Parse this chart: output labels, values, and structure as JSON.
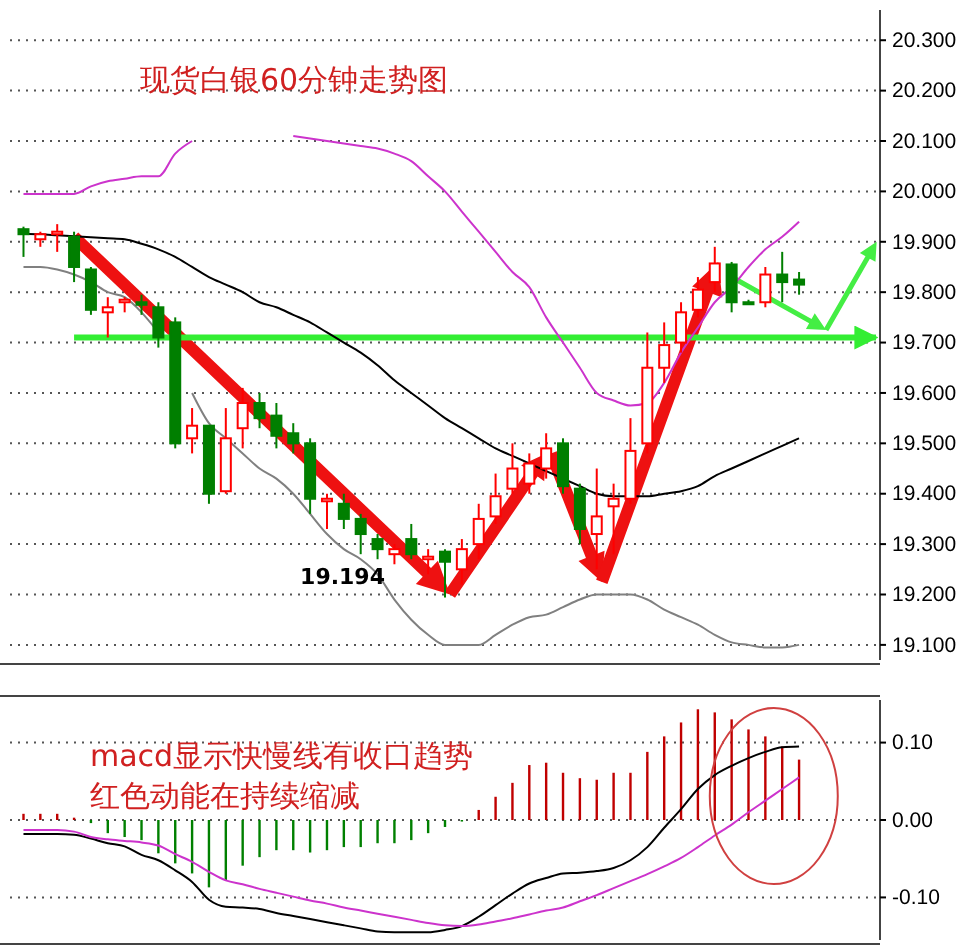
{
  "chart_data": [
    {
      "type": "candlestick",
      "title": "现货白银60分钟走势图",
      "categories": [
        null,
        null,
        null,
        null,
        null,
        null,
        null,
        null,
        null,
        null,
        null,
        null,
        null,
        null,
        null,
        null,
        null,
        null,
        null,
        null,
        null,
        null,
        null,
        null,
        null,
        null,
        null,
        null,
        null,
        null,
        null,
        null,
        null,
        null,
        null,
        null,
        null,
        null,
        null,
        null,
        null,
        null,
        null,
        null,
        null,
        null,
        null
      ],
      "ohlc": [
        [
          19.925,
          19.93,
          19.87,
          19.915
        ],
        [
          19.905,
          19.92,
          19.89,
          19.915
        ],
        [
          19.915,
          19.935,
          19.88,
          19.92
        ],
        [
          19.91,
          19.92,
          19.82,
          19.85
        ],
        [
          19.845,
          19.85,
          19.755,
          19.765
        ],
        [
          19.76,
          19.79,
          19.71,
          19.77
        ],
        [
          19.78,
          19.79,
          19.76,
          19.785
        ],
        [
          19.78,
          19.795,
          19.755,
          19.775
        ],
        [
          19.77,
          19.78,
          19.69,
          19.71
        ],
        [
          19.74,
          19.75,
          19.49,
          19.5
        ],
        [
          19.51,
          19.57,
          19.48,
          19.535
        ],
        [
          19.535,
          19.535,
          19.38,
          19.4
        ],
        [
          19.405,
          19.57,
          19.4,
          19.51
        ],
        [
          19.53,
          19.61,
          19.49,
          19.58
        ],
        [
          19.58,
          19.6,
          19.53,
          19.55
        ],
        [
          19.555,
          19.58,
          19.49,
          19.515
        ],
        [
          19.52,
          19.54,
          19.48,
          19.5
        ],
        [
          19.5,
          19.51,
          19.36,
          19.39
        ],
        [
          19.385,
          19.4,
          19.33,
          19.39
        ],
        [
          19.38,
          19.4,
          19.33,
          19.35
        ],
        [
          19.35,
          19.36,
          19.28,
          19.32
        ],
        [
          19.31,
          19.32,
          19.27,
          19.29
        ],
        [
          19.28,
          19.3,
          19.26,
          19.29
        ],
        [
          19.31,
          19.34,
          19.27,
          19.28
        ],
        [
          19.27,
          19.29,
          19.24,
          19.275
        ],
        [
          19.285,
          19.29,
          19.194,
          19.265
        ],
        [
          19.25,
          19.31,
          19.22,
          19.29
        ],
        [
          19.3,
          19.38,
          19.27,
          19.35
        ],
        [
          19.355,
          19.44,
          19.34,
          19.395
        ],
        [
          19.41,
          19.5,
          19.4,
          19.45
        ],
        [
          19.42,
          19.48,
          19.4,
          19.46
        ],
        [
          19.45,
          19.52,
          19.43,
          19.49
        ],
        [
          19.5,
          19.51,
          19.4,
          19.415
        ],
        [
          19.41,
          19.42,
          19.3,
          19.33
        ],
        [
          19.32,
          19.45,
          19.25,
          19.355
        ],
        [
          19.375,
          19.42,
          19.28,
          19.39
        ],
        [
          19.39,
          19.55,
          19.38,
          19.485
        ],
        [
          19.5,
          19.72,
          19.48,
          19.65
        ],
        [
          19.65,
          19.74,
          19.62,
          19.695
        ],
        [
          19.7,
          19.78,
          19.68,
          19.76
        ],
        [
          19.765,
          19.83,
          19.75,
          19.805
        ],
        [
          19.82,
          19.89,
          19.8,
          19.857
        ],
        [
          19.855,
          19.86,
          19.76,
          19.78
        ],
        [
          19.78,
          19.785,
          19.775,
          19.778
        ],
        [
          19.78,
          19.85,
          19.77,
          19.835
        ],
        [
          19.835,
          19.88,
          19.78,
          19.82
        ],
        [
          19.825,
          19.84,
          19.795,
          19.815
        ]
      ],
      "series": [
        {
          "type": "line",
          "color": "#cc33cc",
          "values": [
            19.995,
            19.995,
            19.995,
            19.995,
            20.01,
            20.02,
            20.025,
            20.03,
            20.03,
            20.075,
            20.1,
            null,
            null,
            null,
            null,
            null,
            20.11,
            20.105,
            20.1,
            20.095,
            20.09,
            20.085,
            20.075,
            20.06,
            20.03,
            20.0,
            19.96,
            19.92,
            19.88,
            19.84,
            19.81,
            19.75,
            19.7,
            19.65,
            19.6,
            19.585,
            19.575,
            19.58,
            19.62,
            19.68,
            19.73,
            19.78,
            19.81,
            19.85,
            19.885,
            19.91,
            19.94
          ]
        },
        {
          "type": "line",
          "color": "#000000",
          "values": [
            19.916,
            19.915,
            19.913,
            19.911,
            19.909,
            19.907,
            19.905,
            19.896,
            19.885,
            19.87,
            19.85,
            19.83,
            19.815,
            19.8,
            19.78,
            19.77,
            19.755,
            19.74,
            19.72,
            19.7,
            19.68,
            19.655,
            19.625,
            19.6,
            19.575,
            19.55,
            19.53,
            19.51,
            19.49,
            19.475,
            19.46,
            19.445,
            19.43,
            19.415,
            19.4,
            19.395,
            19.395,
            19.395,
            19.4,
            19.405,
            19.415,
            19.435,
            19.45,
            19.465,
            19.48,
            19.495,
            19.51
          ]
        },
        {
          "type": "line",
          "color": "#808080",
          "values": [
            19.85,
            19.85,
            19.845,
            19.835,
            19.82,
            19.8,
            19.79,
            19.76,
            19.72,
            null,
            19.6,
            19.54,
            19.51,
            19.48,
            19.45,
            19.43,
            19.4,
            19.36,
            19.32,
            19.29,
            19.27,
            19.24,
            19.19,
            19.15,
            19.12,
            19.1,
            19.1,
            19.1,
            19.12,
            19.14,
            19.155,
            19.16,
            19.175,
            19.19,
            19.2,
            19.2,
            19.2,
            19.19,
            19.17,
            19.155,
            19.14,
            19.12,
            19.105,
            19.1,
            19.095,
            19.095,
            19.1
          ]
        }
      ],
      "ylim": [
        19.07,
        20.36
      ],
      "yticks": [
        {
          "value": 19.1,
          "label": "19.100"
        },
        {
          "value": 19.2,
          "label": "19.200"
        },
        {
          "value": 19.3,
          "label": "19.300"
        },
        {
          "value": 19.4,
          "label": "19.400"
        },
        {
          "value": 19.5,
          "label": "19.500"
        },
        {
          "value": 19.6,
          "label": "19.600"
        },
        {
          "value": 19.7,
          "label": "19.700"
        },
        {
          "value": 19.8,
          "label": "19.800"
        },
        {
          "value": 19.9,
          "label": "19.900"
        },
        {
          "value": 20.0,
          "label": "20.000"
        },
        {
          "value": 20.1,
          "label": "20.100"
        },
        {
          "value": 20.2,
          "label": "20.200"
        },
        {
          "value": 20.3,
          "label": "20.300"
        }
      ],
      "grid": "y",
      "tick_labels": "y",
      "ref_lines": [
        {
          "axis": "y",
          "value": 19.71,
          "color": "#33ee33"
        }
      ],
      "annotations": [
        "19.194"
      ]
    },
    {
      "type": "bar",
      "categories": [
        null,
        null,
        null,
        null,
        null,
        null,
        null,
        null,
        null,
        null,
        null,
        null,
        null,
        null,
        null,
        null,
        null,
        null,
        null,
        null,
        null,
        null,
        null,
        null,
        null,
        null,
        null,
        null,
        null,
        null,
        null,
        null,
        null,
        null,
        null,
        null,
        null,
        null,
        null,
        null,
        null,
        null,
        null,
        null,
        null,
        null,
        null
      ],
      "series": [
        {
          "color": "#c00000",
          "values": [
            0.008,
            0.008,
            0.008,
            0.003,
            null,
            null,
            null,
            null,
            null,
            null,
            null,
            null,
            null,
            null,
            null,
            null,
            null,
            null,
            null,
            null,
            null,
            null,
            null,
            null,
            null,
            null,
            null,
            0.013,
            0.03,
            0.048,
            0.071,
            0.074,
            0.061,
            0.054,
            0.052,
            0.061,
            0.061,
            0.088,
            0.108,
            0.126,
            0.143,
            0.139,
            0.13,
            0.117,
            0.108,
            0.095,
            0.078
          ]
        },
        {
          "color": "#008000",
          "values": [
            null,
            null,
            null,
            null,
            -0.004,
            -0.017,
            -0.022,
            -0.026,
            -0.043,
            -0.056,
            -0.069,
            -0.087,
            -0.078,
            -0.059,
            -0.048,
            -0.039,
            -0.039,
            -0.042,
            -0.039,
            -0.035,
            -0.035,
            -0.03,
            -0.03,
            -0.026,
            -0.017,
            -0.009,
            -0.002,
            null,
            null,
            null,
            null,
            null,
            null,
            null,
            null,
            null,
            null,
            null,
            null,
            null,
            null,
            null,
            null,
            null,
            null,
            null,
            null
          ]
        },
        {
          "type": "line",
          "color": "#000000",
          "values": [
            -0.018,
            -0.018,
            -0.018,
            -0.019,
            -0.024,
            -0.03,
            -0.034,
            -0.045,
            -0.052,
            -0.065,
            -0.08,
            -0.103,
            -0.112,
            -0.113,
            -0.115,
            -0.12,
            -0.124,
            -0.128,
            -0.132,
            -0.136,
            -0.14,
            -0.144,
            -0.145,
            -0.145,
            -0.145,
            -0.142,
            -0.137,
            -0.125,
            -0.11,
            -0.095,
            -0.082,
            -0.075,
            -0.069,
            -0.068,
            -0.066,
            -0.062,
            -0.052,
            -0.035,
            -0.01,
            0.014,
            0.04,
            0.058,
            0.07,
            0.08,
            0.088,
            0.094,
            0.095
          ]
        },
        {
          "type": "line",
          "color": "#cc33cc",
          "values": [
            -0.013,
            -0.013,
            -0.013,
            -0.015,
            -0.022,
            -0.025,
            -0.027,
            -0.029,
            -0.033,
            -0.044,
            -0.054,
            -0.067,
            -0.078,
            -0.083,
            -0.089,
            -0.094,
            -0.099,
            -0.104,
            -0.108,
            -0.113,
            -0.117,
            -0.121,
            -0.125,
            -0.129,
            -0.133,
            -0.136,
            -0.137,
            -0.135,
            -0.131,
            -0.127,
            -0.122,
            -0.117,
            -0.113,
            -0.105,
            -0.097,
            -0.088,
            -0.079,
            -0.07,
            -0.06,
            -0.049,
            -0.035,
            -0.02,
            -0.006,
            0.01,
            0.025,
            0.04,
            0.055
          ]
        }
      ],
      "ylim": [
        -0.155,
        0.155
      ],
      "yticks": [
        {
          "value": -0.1,
          "label": "-0.10"
        },
        {
          "value": 0,
          "label": "0.00"
        },
        {
          "value": 0.1,
          "label": "0.10"
        }
      ],
      "grid": "y",
      "tick_labels": "y",
      "annotations": [
        "macd显示快慢线有收口趋势",
        "红色动能在持续缩减"
      ]
    }
  ]
}
